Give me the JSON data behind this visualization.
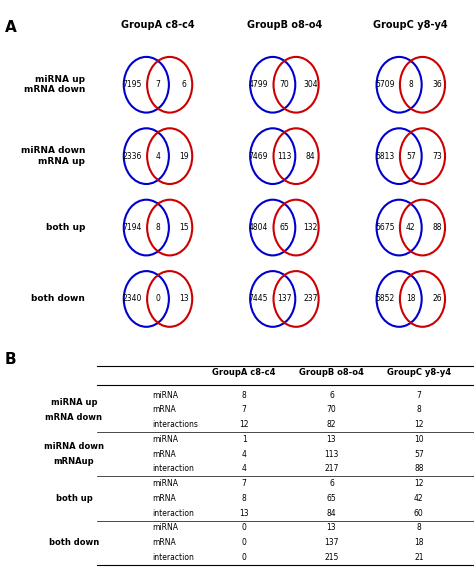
{
  "panel_A_label": "A",
  "panel_B_label": "B",
  "group_headers": [
    "GroupA c8-c4",
    "GroupB o8-o4",
    "GroupC y8-y4"
  ],
  "row_labels": [
    "miRNA up\nmRNA down",
    "miRNA down\nmRNA up",
    "both up",
    "both down"
  ],
  "venn_data": [
    [
      [
        7195,
        7,
        6
      ],
      [
        2336,
        4,
        19
      ],
      [
        7194,
        8,
        15
      ],
      [
        2340,
        0,
        13
      ]
    ],
    [
      [
        4799,
        70,
        304
      ],
      [
        7469,
        113,
        84
      ],
      [
        4804,
        65,
        132
      ],
      [
        7445,
        137,
        237
      ]
    ],
    [
      [
        5709,
        8,
        36
      ],
      [
        5813,
        57,
        73
      ],
      [
        5675,
        42,
        88
      ],
      [
        5852,
        18,
        26
      ]
    ]
  ],
  "blue_color": "#0000CC",
  "red_color": "#CC0000",
  "table_col_headers": [
    "GroupA c8-c4",
    "GroupB o8-o4",
    "GroupC y8-y4"
  ],
  "table_row_groups": [
    {
      "group_label": "miRNA up\nmRNA down",
      "rows": [
        [
          "miRNA",
          "8",
          "6",
          "7"
        ],
        [
          "mRNA",
          "7",
          "70",
          "8"
        ],
        [
          "interactions",
          "12",
          "82",
          "12"
        ]
      ]
    },
    {
      "group_label": "miRNA down\nmRNAup",
      "rows": [
        [
          "miRNA",
          "1",
          "13",
          "10"
        ],
        [
          "mRNA",
          "4",
          "113",
          "57"
        ],
        [
          "interaction",
          "4",
          "217",
          "88"
        ]
      ]
    },
    {
      "group_label": "both up",
      "rows": [
        [
          "miRNA",
          "7",
          "6",
          "12"
        ],
        [
          "mRNA",
          "8",
          "65",
          "42"
        ],
        [
          "interaction",
          "13",
          "84",
          "60"
        ]
      ]
    },
    {
      "group_label": "both down",
      "rows": [
        [
          "miRNA",
          "0",
          "13",
          "8"
        ],
        [
          "mRNA",
          "0",
          "137",
          "18"
        ],
        [
          "interaction",
          "0",
          "215",
          "21"
        ]
      ]
    }
  ]
}
